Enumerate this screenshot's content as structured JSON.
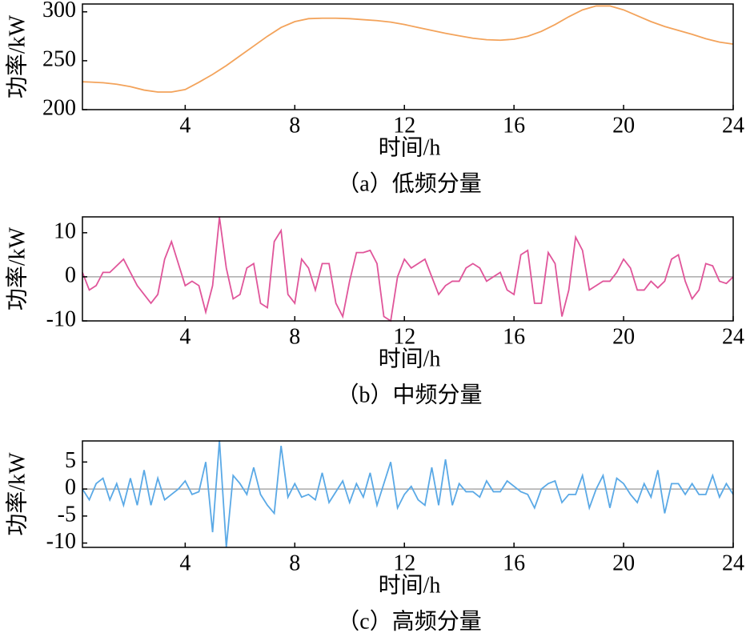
{
  "chart_data": [
    {
      "type": "line",
      "caption": "（a）低频分量",
      "xlabel": "时间/h",
      "ylabel": "功率/kW",
      "color": "#f3a35b",
      "x": [
        0.25,
        0.5,
        1,
        1.5,
        2,
        2.5,
        3,
        3.5,
        4,
        4.5,
        5,
        5.5,
        6,
        6.5,
        7,
        7.5,
        8,
        8.5,
        9,
        9.5,
        10,
        10.5,
        11,
        11.5,
        12,
        12.5,
        13,
        13.5,
        14,
        14.5,
        15,
        15.5,
        16,
        16.5,
        17,
        17.5,
        18,
        18.5,
        19,
        19.5,
        20,
        20.5,
        21,
        21.5,
        22,
        22.5,
        23,
        23.5,
        24
      ],
      "values": [
        228.5,
        228.2,
        227.5,
        226,
        223.5,
        220,
        218,
        218,
        220.5,
        228,
        236,
        245,
        255,
        265,
        275,
        284,
        290,
        293,
        293.5,
        293.5,
        293,
        292,
        291,
        289.5,
        287,
        284,
        281,
        278,
        275.5,
        273,
        271.5,
        271,
        272,
        275,
        280,
        287,
        295,
        302,
        306,
        306,
        302,
        296,
        290,
        285,
        281,
        277,
        272.5,
        269,
        267
      ],
      "xlim": [
        0.25,
        24
      ],
      "ylim": [
        200,
        308
      ],
      "xticks": [
        4,
        8,
        12,
        16,
        20,
        24
      ],
      "yticks": [
        200,
        250,
        300
      ]
    },
    {
      "type": "line",
      "caption": "（b）中频分量",
      "xlabel": "时间/h",
      "ylabel": "功率/kW",
      "color": "#e0559a",
      "reference_line": 0,
      "reference_color": "#aaaaaa",
      "x": [
        0.25,
        0.5,
        0.75,
        1,
        1.25,
        1.5,
        1.75,
        2,
        2.25,
        2.5,
        2.75,
        3,
        3.25,
        3.5,
        3.75,
        4,
        4.25,
        4.5,
        4.75,
        5,
        5.25,
        5.5,
        5.75,
        6,
        6.25,
        6.5,
        6.75,
        7,
        7.25,
        7.5,
        7.75,
        8,
        8.25,
        8.5,
        8.75,
        9,
        9.25,
        9.5,
        9.75,
        10,
        10.25,
        10.5,
        10.75,
        11,
        11.25,
        11.5,
        11.75,
        12,
        12.25,
        12.5,
        12.75,
        13,
        13.25,
        13.5,
        13.75,
        14,
        14.25,
        14.5,
        14.75,
        15,
        15.25,
        15.5,
        15.75,
        16,
        16.25,
        16.5,
        16.75,
        17,
        17.25,
        17.5,
        17.75,
        18,
        18.25,
        18.5,
        18.75,
        19,
        19.25,
        19.5,
        19.75,
        20,
        20.25,
        20.5,
        20.75,
        21,
        21.25,
        21.5,
        21.75,
        22,
        22.25,
        22.5,
        22.75,
        23,
        23.25,
        23.5,
        23.75,
        24
      ],
      "values": [
        1,
        -3,
        -2,
        1,
        1,
        2.5,
        4,
        1,
        -2,
        -4,
        -6,
        -4,
        4,
        8,
        3,
        -2,
        -1,
        -2,
        -8,
        -2,
        13.5,
        2,
        -5,
        -4,
        2,
        3,
        -6,
        -7,
        8,
        10.5,
        -4,
        -6,
        4,
        2,
        -3,
        3,
        3,
        -6,
        -9,
        -1,
        5.5,
        5.5,
        6,
        3,
        -9,
        -10,
        0,
        4,
        2,
        3,
        4,
        0,
        -4,
        -2,
        -1,
        -1,
        2,
        3,
        2,
        -1,
        0,
        1,
        -3,
        -4,
        5,
        6,
        -6,
        -6,
        5.5,
        3,
        -9,
        -3,
        9,
        6,
        -3,
        -2,
        -1,
        -1,
        1,
        4,
        2,
        -3,
        -3,
        -1,
        -2.5,
        -1,
        4,
        5,
        -1,
        -5,
        -3,
        3,
        2.5,
        -1,
        -1.5,
        0
      ],
      "xlim": [
        0.25,
        24
      ],
      "ylim": [
        -10,
        13.6
      ],
      "xticks": [
        4,
        8,
        12,
        16,
        20,
        24
      ],
      "yticks": [
        -10,
        0,
        10
      ]
    },
    {
      "type": "line",
      "caption": "（c）高频分量",
      "xlabel": "时间/h",
      "ylabel": "功率/kW",
      "color": "#5aa9e6",
      "reference_line": 0,
      "reference_color": "#aaaaaa",
      "x": [
        0.25,
        0.5,
        0.75,
        1,
        1.25,
        1.5,
        1.75,
        2,
        2.25,
        2.5,
        2.75,
        3,
        3.25,
        3.5,
        3.75,
        4,
        4.25,
        4.5,
        4.75,
        5,
        5.25,
        5.5,
        5.75,
        6,
        6.25,
        6.5,
        6.75,
        7,
        7.25,
        7.5,
        7.75,
        8,
        8.25,
        8.5,
        8.75,
        9,
        9.25,
        9.5,
        9.75,
        10,
        10.25,
        10.5,
        10.75,
        11,
        11.25,
        11.5,
        11.75,
        12,
        12.25,
        12.5,
        12.75,
        13,
        13.25,
        13.5,
        13.75,
        14,
        14.25,
        14.5,
        14.75,
        15,
        15.25,
        15.5,
        15.75,
        16,
        16.25,
        16.5,
        16.75,
        17,
        17.25,
        17.5,
        17.75,
        18,
        18.25,
        18.5,
        18.75,
        19,
        19.25,
        19.5,
        19.75,
        20,
        20.25,
        20.5,
        20.75,
        21,
        21.25,
        21.5,
        21.75,
        22,
        22.25,
        22.5,
        22.75,
        23,
        23.25,
        23.5,
        23.75,
        24
      ],
      "values": [
        0,
        -2,
        1,
        2,
        -2,
        1,
        -3,
        2,
        -3,
        3.5,
        -3,
        2,
        -2,
        -1,
        0,
        1.5,
        -1,
        -0.5,
        5,
        -8,
        9,
        -10.8,
        2.5,
        1,
        -1,
        4,
        -1,
        -3,
        -4.5,
        8,
        -1.5,
        1,
        -1.5,
        -1,
        -2,
        3,
        -2.5,
        -0.5,
        1.5,
        -2.5,
        1,
        -1.5,
        3,
        -3,
        1,
        5,
        -3.5,
        -1,
        0.5,
        -2,
        -3,
        4,
        -3,
        5.5,
        -3,
        1,
        -0.5,
        -0.5,
        -1.5,
        1.5,
        -0.5,
        -0.5,
        1.5,
        0.5,
        -0.5,
        -1,
        -3.5,
        0,
        1,
        1.5,
        -2.5,
        -1,
        -1,
        2.5,
        -3.5,
        0,
        2.5,
        -3.5,
        2,
        1,
        -1,
        -2.5,
        1,
        -1.5,
        3.5,
        -4.5,
        1,
        1,
        -1,
        1,
        -1,
        -1,
        2.5,
        -1.5,
        1,
        -1
      ],
      "xlim": [
        0.25,
        24
      ],
      "ylim": [
        -10.8,
        8.9
      ],
      "xticks": [
        4,
        8,
        12,
        16,
        20,
        24
      ],
      "yticks": [
        -10,
        -5,
        0,
        5
      ]
    }
  ]
}
